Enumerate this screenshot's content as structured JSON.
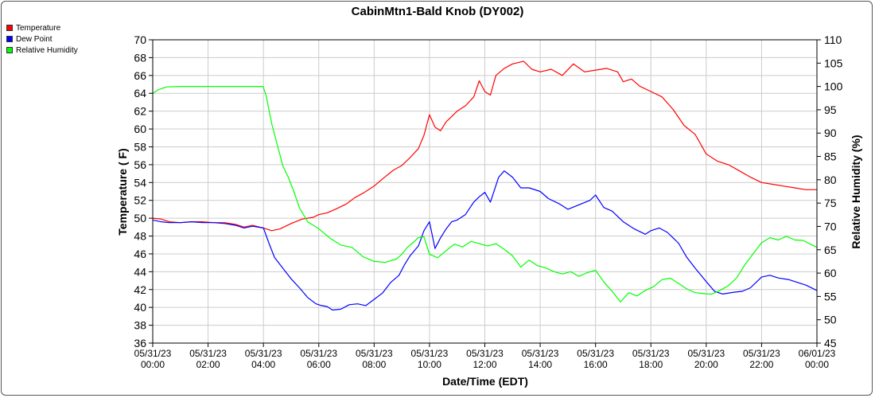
{
  "chart_data": {
    "type": "line",
    "title": "CabinMtn1-Bald Knob (DY002)",
    "xlabel": "Date/Time (EDT)",
    "ylabel": "Temperature ( F)",
    "y2label": "Relative Humidity (%)",
    "xlim": [
      0,
      24
    ],
    "ylim": [
      36,
      70
    ],
    "y2lim": [
      45,
      110
    ],
    "x_ticks": [
      {
        "x": 0,
        "date": "05/31/23",
        "time": "00:00"
      },
      {
        "x": 2,
        "date": "05/31/23",
        "time": "02:00"
      },
      {
        "x": 4,
        "date": "05/31/23",
        "time": "04:00"
      },
      {
        "x": 6,
        "date": "05/31/23",
        "time": "06:00"
      },
      {
        "x": 8,
        "date": "05/31/23",
        "time": "08:00"
      },
      {
        "x": 10,
        "date": "05/31/23",
        "time": "10:00"
      },
      {
        "x": 12,
        "date": "05/31/23",
        "time": "12:00"
      },
      {
        "x": 14,
        "date": "05/31/23",
        "time": "14:00"
      },
      {
        "x": 16,
        "date": "05/31/23",
        "time": "16:00"
      },
      {
        "x": 18,
        "date": "05/31/23",
        "time": "18:00"
      },
      {
        "x": 20,
        "date": "05/31/23",
        "time": "20:00"
      },
      {
        "x": 22,
        "date": "05/31/23",
        "time": "22:00"
      },
      {
        "x": 24,
        "date": "06/01/23",
        "time": "00:00"
      }
    ],
    "y_ticks": [
      36,
      38,
      40,
      42,
      44,
      46,
      48,
      50,
      52,
      54,
      56,
      58,
      60,
      62,
      64,
      66,
      68,
      70
    ],
    "y2_ticks": [
      45,
      50,
      55,
      60,
      65,
      70,
      75,
      80,
      85,
      90,
      95,
      100,
      105,
      110
    ],
    "grid": true,
    "legend": "top-left",
    "series": [
      {
        "name": "Temperature",
        "color": "#ff0000",
        "axis": "left",
        "points": [
          [
            0,
            50
          ],
          [
            0.3,
            49.9
          ],
          [
            0.6,
            49.6
          ],
          [
            1,
            49.5
          ],
          [
            1.4,
            49.6
          ],
          [
            1.8,
            49.6
          ],
          [
            2.2,
            49.5
          ],
          [
            2.6,
            49.5
          ],
          [
            3,
            49.3
          ],
          [
            3.3,
            49
          ],
          [
            3.6,
            49.2
          ],
          [
            4,
            48.9
          ],
          [
            4.3,
            48.6
          ],
          [
            4.6,
            48.8
          ],
          [
            5,
            49.4
          ],
          [
            5.4,
            49.9
          ],
          [
            5.8,
            50.1
          ],
          [
            6,
            50.4
          ],
          [
            6.3,
            50.6
          ],
          [
            6.6,
            51
          ],
          [
            7,
            51.6
          ],
          [
            7.3,
            52.3
          ],
          [
            7.6,
            52.8
          ],
          [
            8,
            53.6
          ],
          [
            8.3,
            54.4
          ],
          [
            8.7,
            55.4
          ],
          [
            9,
            55.9
          ],
          [
            9.3,
            56.8
          ],
          [
            9.6,
            57.8
          ],
          [
            9.8,
            59.3
          ],
          [
            10,
            61.6
          ],
          [
            10.2,
            60.2
          ],
          [
            10.4,
            59.8
          ],
          [
            10.6,
            60.8
          ],
          [
            10.8,
            61.4
          ],
          [
            11,
            62
          ],
          [
            11.3,
            62.6
          ],
          [
            11.6,
            63.6
          ],
          [
            11.8,
            65.4
          ],
          [
            12,
            64.2
          ],
          [
            12.2,
            63.8
          ],
          [
            12.4,
            66
          ],
          [
            12.7,
            66.8
          ],
          [
            13,
            67.3
          ],
          [
            13.4,
            67.6
          ],
          [
            13.7,
            66.7
          ],
          [
            14,
            66.4
          ],
          [
            14.4,
            66.7
          ],
          [
            14.8,
            66
          ],
          [
            15.2,
            67.3
          ],
          [
            15.6,
            66.4
          ],
          [
            16,
            66.6
          ],
          [
            16.4,
            66.8
          ],
          [
            16.8,
            66.4
          ],
          [
            17,
            65.3
          ],
          [
            17.3,
            65.6
          ],
          [
            17.6,
            64.8
          ],
          [
            18,
            64.2
          ],
          [
            18.4,
            63.6
          ],
          [
            18.8,
            62.2
          ],
          [
            19.2,
            60.4
          ],
          [
            19.6,
            59.4
          ],
          [
            20,
            57.2
          ],
          [
            20.4,
            56.4
          ],
          [
            20.8,
            56
          ],
          [
            21.2,
            55.3
          ],
          [
            21.6,
            54.6
          ],
          [
            22,
            54
          ],
          [
            22.4,
            53.8
          ],
          [
            22.8,
            53.6
          ],
          [
            23.2,
            53.4
          ],
          [
            23.6,
            53.2
          ],
          [
            24,
            53.2
          ]
        ]
      },
      {
        "name": "Dew Point",
        "color": "#0000ff",
        "axis": "left",
        "points": [
          [
            0,
            49.8
          ],
          [
            0.3,
            49.6
          ],
          [
            0.6,
            49.5
          ],
          [
            1,
            49.5
          ],
          [
            1.4,
            49.6
          ],
          [
            1.8,
            49.5
          ],
          [
            2.2,
            49.5
          ],
          [
            2.6,
            49.4
          ],
          [
            3,
            49.2
          ],
          [
            3.3,
            48.9
          ],
          [
            3.6,
            49.1
          ],
          [
            4,
            48.9
          ],
          [
            4.2,
            47.2
          ],
          [
            4.4,
            45.6
          ],
          [
            4.7,
            44.4
          ],
          [
            5,
            43.2
          ],
          [
            5.3,
            42.2
          ],
          [
            5.6,
            41.1
          ],
          [
            5.9,
            40.4
          ],
          [
            6.1,
            40.2
          ],
          [
            6.3,
            40.1
          ],
          [
            6.5,
            39.7
          ],
          [
            6.8,
            39.8
          ],
          [
            7.1,
            40.3
          ],
          [
            7.4,
            40.4
          ],
          [
            7.7,
            40.2
          ],
          [
            8,
            40.9
          ],
          [
            8.3,
            41.6
          ],
          [
            8.6,
            42.8
          ],
          [
            8.9,
            43.6
          ],
          [
            9.1,
            44.8
          ],
          [
            9.3,
            45.8
          ],
          [
            9.6,
            46.9
          ],
          [
            9.8,
            48.6
          ],
          [
            10,
            49.6
          ],
          [
            10.2,
            46.6
          ],
          [
            10.4,
            47.8
          ],
          [
            10.6,
            48.8
          ],
          [
            10.8,
            49.6
          ],
          [
            11,
            49.8
          ],
          [
            11.3,
            50.4
          ],
          [
            11.6,
            51.8
          ],
          [
            11.8,
            52.4
          ],
          [
            12,
            52.9
          ],
          [
            12.2,
            51.8
          ],
          [
            12.5,
            54.6
          ],
          [
            12.7,
            55.3
          ],
          [
            13,
            54.6
          ],
          [
            13.3,
            53.4
          ],
          [
            13.6,
            53.4
          ],
          [
            14,
            53
          ],
          [
            14.3,
            52.2
          ],
          [
            14.7,
            51.6
          ],
          [
            15,
            51
          ],
          [
            15.4,
            51.5
          ],
          [
            15.8,
            52
          ],
          [
            16,
            52.6
          ],
          [
            16.3,
            51.2
          ],
          [
            16.6,
            50.8
          ],
          [
            17,
            49.6
          ],
          [
            17.4,
            48.8
          ],
          [
            17.8,
            48.2
          ],
          [
            18,
            48.6
          ],
          [
            18.3,
            48.9
          ],
          [
            18.6,
            48.4
          ],
          [
            18.8,
            47.8
          ],
          [
            19,
            47.2
          ],
          [
            19.3,
            45.6
          ],
          [
            19.6,
            44.4
          ],
          [
            20,
            42.9
          ],
          [
            20.3,
            41.8
          ],
          [
            20.6,
            41.5
          ],
          [
            21,
            41.7
          ],
          [
            21.3,
            41.8
          ],
          [
            21.6,
            42.2
          ],
          [
            22,
            43.4
          ],
          [
            22.3,
            43.6
          ],
          [
            22.6,
            43.3
          ],
          [
            23,
            43.1
          ],
          [
            23.3,
            42.8
          ],
          [
            23.6,
            42.5
          ],
          [
            24,
            41.9
          ]
        ]
      },
      {
        "name": "Relative Humidity",
        "color": "#00ff00",
        "axis": "right",
        "points": [
          [
            0,
            98.5
          ],
          [
            0.2,
            99.3
          ],
          [
            0.5,
            99.9
          ],
          [
            1,
            100
          ],
          [
            2,
            100
          ],
          [
            3,
            100
          ],
          [
            3.99,
            100
          ],
          [
            4.1,
            98
          ],
          [
            4.3,
            92
          ],
          [
            4.5,
            87.5
          ],
          [
            4.7,
            83
          ],
          [
            4.9,
            80.5
          ],
          [
            5.1,
            77.5
          ],
          [
            5.3,
            74
          ],
          [
            5.6,
            71
          ],
          [
            6,
            69.5
          ],
          [
            6.4,
            67.5
          ],
          [
            6.8,
            66
          ],
          [
            7.2,
            65.5
          ],
          [
            7.6,
            63.5
          ],
          [
            8,
            62.5
          ],
          [
            8.4,
            62.3
          ],
          [
            8.8,
            63
          ],
          [
            9,
            64
          ],
          [
            9.2,
            65.5
          ],
          [
            9.4,
            66.5
          ],
          [
            9.6,
            67.6
          ],
          [
            9.8,
            67.8
          ],
          [
            10,
            64
          ],
          [
            10.3,
            63.3
          ],
          [
            10.6,
            64.8
          ],
          [
            10.9,
            66.2
          ],
          [
            11.2,
            65.6
          ],
          [
            11.5,
            66.8
          ],
          [
            11.8,
            66.3
          ],
          [
            12.1,
            65.8
          ],
          [
            12.4,
            66.3
          ],
          [
            12.7,
            65.1
          ],
          [
            13,
            63.7
          ],
          [
            13.3,
            61.3
          ],
          [
            13.6,
            62.8
          ],
          [
            13.9,
            61.6
          ],
          [
            14.2,
            61.1
          ],
          [
            14.5,
            60.3
          ],
          [
            14.8,
            59.8
          ],
          [
            15.1,
            60.3
          ],
          [
            15.4,
            59.3
          ],
          [
            15.7,
            60.1
          ],
          [
            16,
            60.6
          ],
          [
            16.3,
            58.1
          ],
          [
            16.6,
            56.1
          ],
          [
            16.9,
            53.8
          ],
          [
            17.2,
            55.8
          ],
          [
            17.5,
            55.1
          ],
          [
            17.8,
            56.3
          ],
          [
            18.1,
            57.1
          ],
          [
            18.4,
            58.6
          ],
          [
            18.7,
            58.9
          ],
          [
            19,
            57.8
          ],
          [
            19.3,
            56.6
          ],
          [
            19.6,
            55.8
          ],
          [
            19.9,
            55.6
          ],
          [
            20.2,
            55.5
          ],
          [
            20.5,
            56.3
          ],
          [
            20.8,
            57.3
          ],
          [
            21.1,
            59
          ],
          [
            21.4,
            61.8
          ],
          [
            21.7,
            64.2
          ],
          [
            22,
            66.5
          ],
          [
            22.3,
            67.6
          ],
          [
            22.6,
            67.1
          ],
          [
            22.9,
            67.9
          ],
          [
            23.2,
            67.1
          ],
          [
            23.5,
            67
          ],
          [
            23.8,
            66.1
          ],
          [
            24,
            65.5
          ]
        ]
      }
    ]
  }
}
